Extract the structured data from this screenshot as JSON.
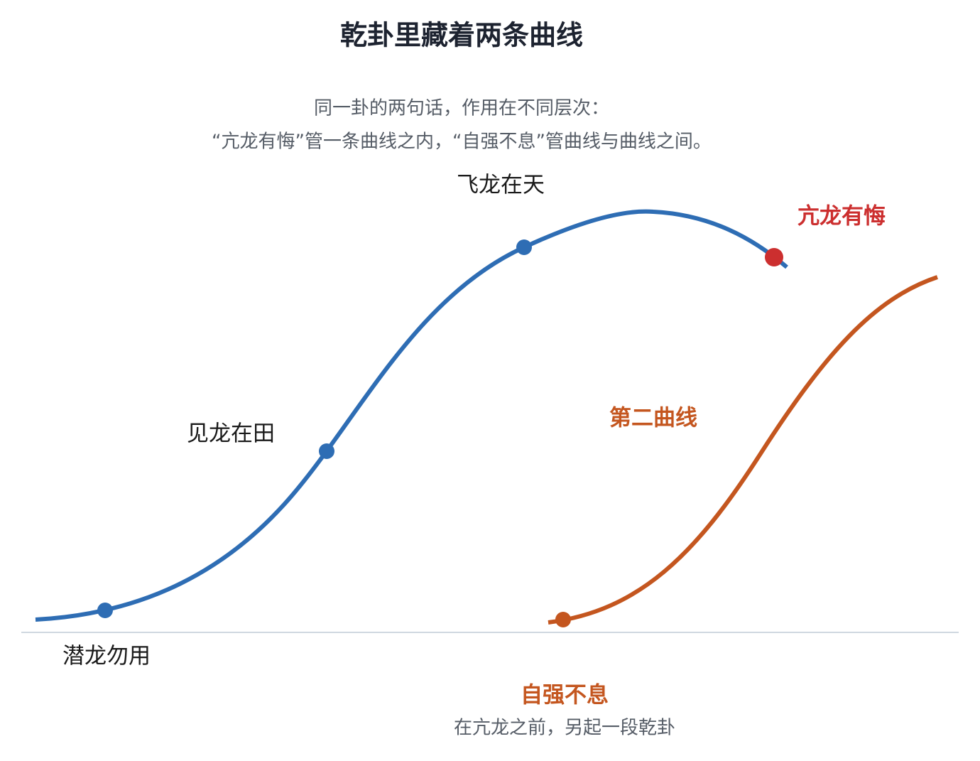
{
  "title": "乾卦里藏着两条曲线",
  "subtitle": [
    "同一卦的两句话，作用在不同层次：",
    "“亢龙有悔”管一条曲线之内，“自强不息”管曲线与曲线之间。"
  ],
  "stages": [
    "潜龙勿用",
    "见龙在田",
    "飞龙在天",
    "亢龙有悔"
  ],
  "second_curve": {
    "label": "第二曲线",
    "start_label": "自强不息",
    "start_note": "在亢龙之前，另起一段乾卦"
  }
}
